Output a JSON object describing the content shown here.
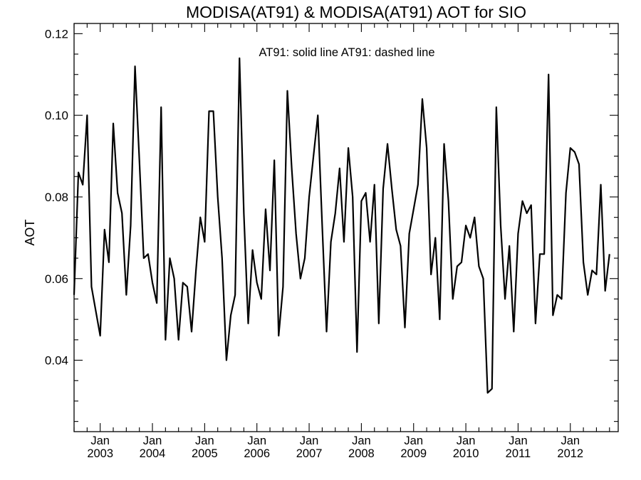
{
  "chart_data": {
    "type": "line",
    "title": "MODISA(AT91) & MODISA(AT91)  AOT for SIO",
    "legend_text": "AT91: solid line   AT91: dashed line",
    "legend_position": "top-center",
    "xlabel": "",
    "ylabel": "AOT",
    "xlim": [
      "2002-07",
      "2012-12"
    ],
    "ylim": [
      0.0225,
      0.1225
    ],
    "y_ticks": [
      "0.04",
      "0.06",
      "0.08",
      "0.10",
      "0.12"
    ],
    "y_tick_values": [
      0.04,
      0.06,
      0.08,
      0.1,
      0.12
    ],
    "x_ticks": [
      {
        "month": "Jan",
        "year": "2003",
        "date": "2003-01"
      },
      {
        "month": "Jan",
        "year": "2004",
        "date": "2004-01"
      },
      {
        "month": "Jan",
        "year": "2005",
        "date": "2005-01"
      },
      {
        "month": "Jan",
        "year": "2006",
        "date": "2006-01"
      },
      {
        "month": "Jan",
        "year": "2007",
        "date": "2007-01"
      },
      {
        "month": "Jan",
        "year": "2008",
        "date": "2008-01"
      },
      {
        "month": "Jan",
        "year": "2009",
        "date": "2009-01"
      },
      {
        "month": "Jan",
        "year": "2010",
        "date": "2010-01"
      },
      {
        "month": "Jan",
        "year": "2011",
        "date": "2011-01"
      },
      {
        "month": "Jan",
        "year": "2012",
        "date": "2012-01"
      }
    ],
    "grid": false,
    "series": [
      {
        "line_style": "solid",
        "color": "#000000",
        "points": [
          [
            "2002-07",
            0.056
          ],
          [
            "2002-08",
            0.086
          ],
          [
            "2002-09",
            0.083
          ],
          [
            "2002-10",
            0.1
          ],
          [
            "2002-11",
            0.058
          ],
          [
            "2002-12",
            0.052
          ],
          [
            "2003-01",
            0.046
          ],
          [
            "2003-02",
            0.072
          ],
          [
            "2003-03",
            0.064
          ],
          [
            "2003-04",
            0.098
          ],
          [
            "2003-05",
            0.081
          ],
          [
            "2003-06",
            0.076
          ],
          [
            "2003-07",
            0.056
          ],
          [
            "2003-08",
            0.073
          ],
          [
            "2003-09",
            0.112
          ],
          [
            "2003-10",
            0.089
          ],
          [
            "2003-11",
            0.065
          ],
          [
            "2003-12",
            0.066
          ],
          [
            "2004-01",
            0.059
          ],
          [
            "2004-02",
            0.054
          ],
          [
            "2004-03",
            0.102
          ],
          [
            "2004-04",
            0.045
          ],
          [
            "2004-05",
            0.065
          ],
          [
            "2004-06",
            0.06
          ],
          [
            "2004-07",
            0.045
          ],
          [
            "2004-08",
            0.059
          ],
          [
            "2004-09",
            0.058
          ],
          [
            "2004-10",
            0.047
          ],
          [
            "2004-11",
            0.062
          ],
          [
            "2004-12",
            0.075
          ],
          [
            "2005-01",
            0.069
          ],
          [
            "2005-02",
            0.101
          ],
          [
            "2005-03",
            0.101
          ],
          [
            "2005-04",
            0.08
          ],
          [
            "2005-05",
            0.065
          ],
          [
            "2005-06",
            0.04
          ],
          [
            "2005-07",
            0.051
          ],
          [
            "2005-08",
            0.056
          ],
          [
            "2005-09",
            0.114
          ],
          [
            "2005-10",
            0.076
          ],
          [
            "2005-11",
            0.049
          ],
          [
            "2005-12",
            0.067
          ],
          [
            "2006-01",
            0.059
          ],
          [
            "2006-02",
            0.055
          ],
          [
            "2006-03",
            0.077
          ],
          [
            "2006-04",
            0.062
          ],
          [
            "2006-05",
            0.089
          ],
          [
            "2006-06",
            0.046
          ],
          [
            "2006-07",
            0.058
          ],
          [
            "2006-08",
            0.106
          ],
          [
            "2006-09",
            0.087
          ],
          [
            "2006-10",
            0.071
          ],
          [
            "2006-11",
            0.06
          ],
          [
            "2006-12",
            0.065
          ],
          [
            "2007-01",
            0.08
          ],
          [
            "2007-02",
            0.09
          ],
          [
            "2007-03",
            0.1
          ],
          [
            "2007-04",
            0.073
          ],
          [
            "2007-05",
            0.047
          ],
          [
            "2007-06",
            0.069
          ],
          [
            "2007-07",
            0.076
          ],
          [
            "2007-08",
            0.087
          ],
          [
            "2007-09",
            0.069
          ],
          [
            "2007-10",
            0.092
          ],
          [
            "2007-11",
            0.08
          ],
          [
            "2007-12",
            0.042
          ],
          [
            "2008-01",
            0.079
          ],
          [
            "2008-02",
            0.081
          ],
          [
            "2008-03",
            0.069
          ],
          [
            "2008-04",
            0.083
          ],
          [
            "2008-05",
            0.049
          ],
          [
            "2008-06",
            0.082
          ],
          [
            "2008-07",
            0.093
          ],
          [
            "2008-08",
            0.082
          ],
          [
            "2008-09",
            0.072
          ],
          [
            "2008-10",
            0.068
          ],
          [
            "2008-11",
            0.048
          ],
          [
            "2008-12",
            0.071
          ],
          [
            "2009-01",
            0.077
          ],
          [
            "2009-02",
            0.083
          ],
          [
            "2009-03",
            0.104
          ],
          [
            "2009-04",
            0.092
          ],
          [
            "2009-05",
            0.061
          ],
          [
            "2009-06",
            0.07
          ],
          [
            "2009-07",
            0.05
          ],
          [
            "2009-08",
            0.093
          ],
          [
            "2009-09",
            0.079
          ],
          [
            "2009-10",
            0.055
          ],
          [
            "2009-11",
            0.063
          ],
          [
            "2009-12",
            0.064
          ],
          [
            "2010-01",
            0.073
          ],
          [
            "2010-02",
            0.07
          ],
          [
            "2010-03",
            0.075
          ],
          [
            "2010-04",
            0.063
          ],
          [
            "2010-05",
            0.06
          ],
          [
            "2010-06",
            0.032
          ],
          [
            "2010-07",
            0.033
          ],
          [
            "2010-08",
            0.102
          ],
          [
            "2010-09",
            0.073
          ],
          [
            "2010-10",
            0.055
          ],
          [
            "2010-11",
            0.068
          ],
          [
            "2010-12",
            0.047
          ],
          [
            "2011-01",
            0.071
          ],
          [
            "2011-02",
            0.079
          ],
          [
            "2011-03",
            0.076
          ],
          [
            "2011-04",
            0.078
          ],
          [
            "2011-05",
            0.049
          ],
          [
            "2011-06",
            0.066
          ],
          [
            "2011-07",
            0.066
          ],
          [
            "2011-08",
            0.11
          ],
          [
            "2011-09",
            0.051
          ],
          [
            "2011-10",
            0.056
          ],
          [
            "2011-11",
            0.055
          ],
          [
            "2011-12",
            0.081
          ],
          [
            "2012-01",
            0.092
          ],
          [
            "2012-02",
            0.091
          ],
          [
            "2012-03",
            0.088
          ],
          [
            "2012-04",
            0.064
          ],
          [
            "2012-05",
            0.056
          ],
          [
            "2012-06",
            0.062
          ],
          [
            "2012-07",
            0.061
          ],
          [
            "2012-08",
            0.083
          ],
          [
            "2012-09",
            0.057
          ],
          [
            "2012-10",
            0.066
          ]
        ]
      }
    ]
  }
}
